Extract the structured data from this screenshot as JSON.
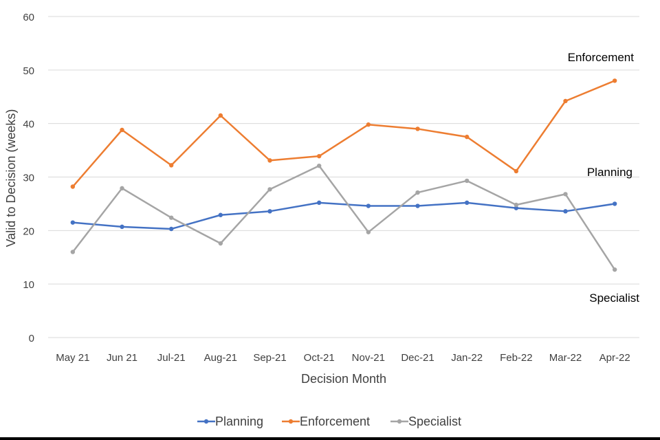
{
  "chart_data": {
    "type": "line",
    "title": "",
    "xlabel": "Decision Month",
    "ylabel": "Valid to Decision (weeks)",
    "ylim": [
      0,
      60
    ],
    "yticks": [
      0,
      10,
      20,
      30,
      40,
      50,
      60
    ],
    "grid": true,
    "legend": "bottom",
    "categories": [
      "May 21",
      "Jun 21",
      "Jul-21",
      "Aug-21",
      "Sep-21",
      "Oct-21",
      "Nov-21",
      "Dec-21",
      "Jan-22",
      "Feb-22",
      "Mar-22",
      "Apr-22"
    ],
    "series": [
      {
        "name": "Planning",
        "color": "#4472C4",
        "values": [
          21.5,
          20.7,
          20.3,
          22.9,
          23.6,
          25.2,
          24.6,
          24.6,
          25.2,
          24.2,
          23.6,
          25.0
        ]
      },
      {
        "name": "Enforcement",
        "color": "#ED7D31",
        "values": [
          28.2,
          38.8,
          32.2,
          41.5,
          33.1,
          33.9,
          39.8,
          39.0,
          37.5,
          31.1,
          44.2,
          48.0
        ]
      },
      {
        "name": "Specialist",
        "color": "#A5A5A5",
        "values": [
          16.0,
          27.9,
          22.4,
          17.6,
          27.7,
          32.1,
          19.7,
          27.1,
          29.3,
          24.8,
          26.8,
          12.7
        ]
      }
    ],
    "annotations": [
      "Enforcement",
      "Planning",
      "Specialist"
    ]
  }
}
